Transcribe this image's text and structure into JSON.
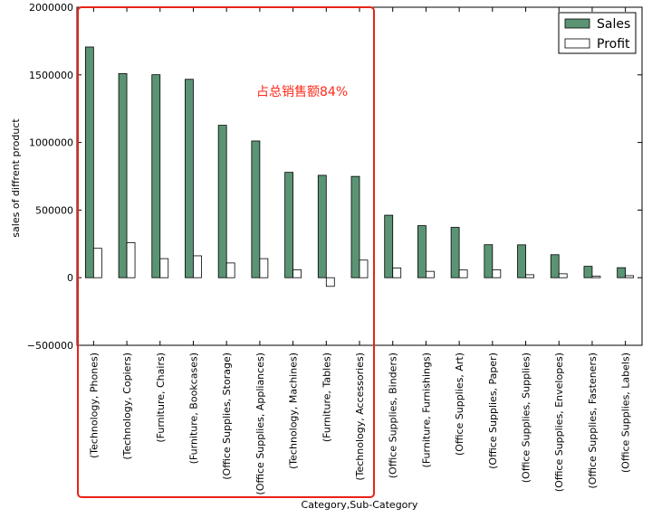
{
  "chart_data": {
    "type": "bar",
    "xlabel": "Category,Sub-Category",
    "ylabel": "sales of diffrent product",
    "ylim": [
      -500000,
      2000000
    ],
    "yticks": [
      -500000,
      0,
      500000,
      1000000,
      1500000,
      2000000
    ],
    "ytick_labels": [
      "−500000",
      "0",
      "500000",
      "1000000",
      "1500000",
      "2000000"
    ],
    "categories": [
      "(Technology, Phones)",
      "(Technology, Copiers)",
      "(Furniture, Chairs)",
      "(Furniture, Bookcases)",
      "(Office Supplies, Storage)",
      "(Office Supplies, Appliances)",
      "(Technology, Machines)",
      "(Furniture, Tables)",
      "(Technology, Accessories)",
      "(Office Supplies, Binders)",
      "(Furniture, Furnishings)",
      "(Office Supplies, Art)",
      "(Office Supplies, Paper)",
      "(Office Supplies, Supplies)",
      "(Office Supplies, Envelopes)",
      "(Office Supplies, Fasteners)",
      "(Office Supplies, Labels)"
    ],
    "series": [
      {
        "name": "Sales",
        "color": "#5a9474",
        "values": [
          1706000,
          1509000,
          1501000,
          1467000,
          1127000,
          1011000,
          779000,
          757000,
          749000,
          462000,
          385000,
          372000,
          244000,
          243000,
          170000,
          84000,
          74000
        ]
      },
      {
        "name": "Profit",
        "color": "#ffffff",
        "values": [
          217000,
          259000,
          141000,
          162000,
          109000,
          141000,
          58000,
          -64000,
          130000,
          72000,
          47000,
          57000,
          59000,
          22000,
          29000,
          11000,
          15000
        ]
      }
    ],
    "legend": {
      "placement": "top-right"
    },
    "grid": false,
    "annotation": {
      "text": "占总销售额84%",
      "color": "#ff2a1a"
    },
    "highlight_box": {
      "color": "#e8231b",
      "covers_categories": 9
    }
  }
}
